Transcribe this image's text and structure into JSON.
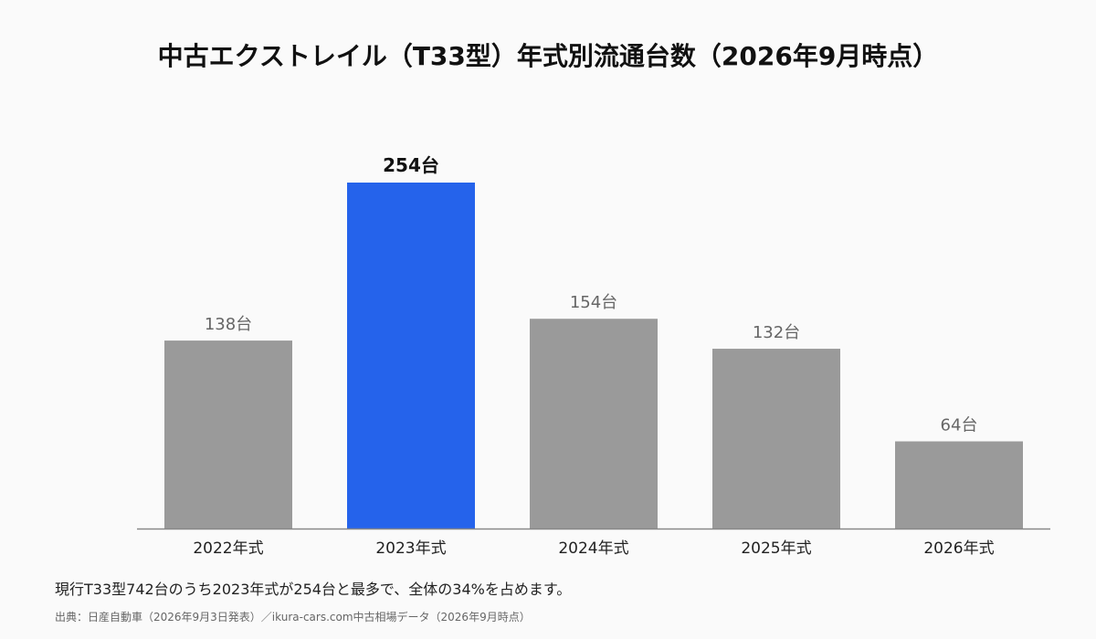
{
  "chart_data": {
    "type": "bar",
    "title": "中古エクストレイル（T33型）年式別流通台数（2026年9月時点）",
    "categories": [
      "2022年式",
      "2023年式",
      "2024年式",
      "2025年式",
      "2026年式"
    ],
    "values": [
      138,
      254,
      154,
      132,
      64
    ],
    "value_labels": [
      "138台",
      "254台",
      "154台",
      "132台",
      "64台"
    ],
    "highlight_index": 1,
    "ylim": [
      0,
      254
    ],
    "grid": false,
    "legend": "none",
    "colors": {
      "default_bar": "#9a9a9a",
      "highlight_bar": "#2563eb",
      "default_label": "#666666",
      "highlight_label": "#111111",
      "axis": "#888888"
    }
  },
  "footer": {
    "summary": "現行T33型742台のうち2023年式が254台と最多で、全体の34%を占めます。",
    "source": "出典：日産自動車（2026年9月3日発表）／ikura-cars.com中古相場データ（2026年9月時点）"
  }
}
